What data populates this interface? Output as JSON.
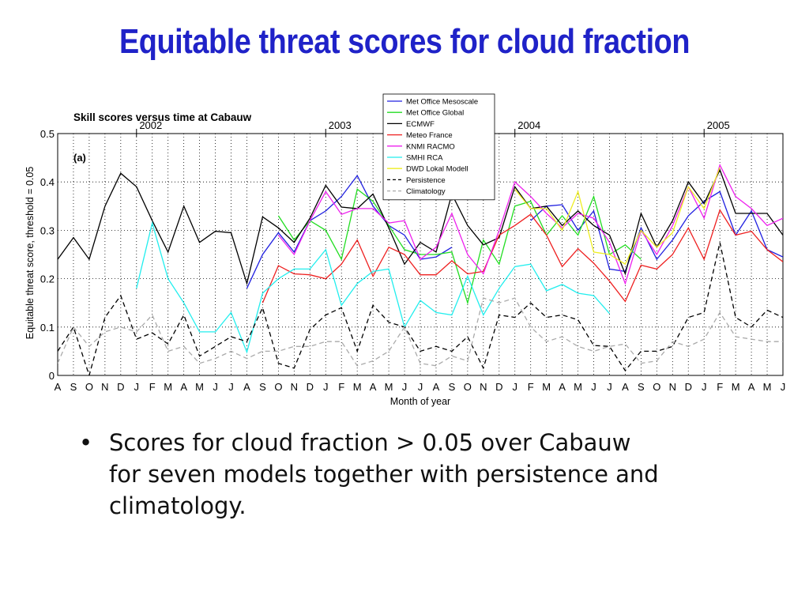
{
  "slide": {
    "title": "Equitable threat scores for cloud fraction",
    "bullet": "Scores for cloud fraction > 0.05 over Cabauw for seven models together with persistence and climatology."
  },
  "chart_data": {
    "type": "line",
    "title": "Skill scores versus time at Cabauw",
    "panel_label": "(a)",
    "xlabel": "Month of year",
    "ylabel": "Equitable threat score, threshold = 0.05",
    "ylim": [
      0,
      0.5
    ],
    "yticks": [
      "0",
      "0.1",
      "0.2",
      "0.3",
      "0.4",
      "0.5"
    ],
    "categories": [
      "A",
      "S",
      "O",
      "N",
      "D",
      "J",
      "F",
      "M",
      "A",
      "M",
      "J",
      "J",
      "A",
      "S",
      "O",
      "N",
      "D",
      "J",
      "F",
      "M",
      "A",
      "M",
      "J",
      "J",
      "A",
      "S",
      "O",
      "N",
      "D",
      "J",
      "F",
      "M",
      "A",
      "M",
      "J",
      "J",
      "A",
      "S",
      "O",
      "N",
      "D",
      "J",
      "F",
      "M",
      "A",
      "M",
      "J"
    ],
    "year_marks": [
      {
        "label": "2002",
        "index": 5
      },
      {
        "label": "2003",
        "index": 17
      },
      {
        "label": "2004",
        "index": 29
      },
      {
        "label": "2005",
        "index": 41
      }
    ],
    "grid": true,
    "legend_position": "top-right",
    "series": [
      {
        "name": "Met Office Mesoscale",
        "color": "#2020e0",
        "dash": false,
        "values": [
          null,
          null,
          null,
          null,
          null,
          null,
          null,
          null,
          null,
          null,
          null,
          null,
          0.18,
          0.25,
          0.295,
          0.255,
          0.32,
          0.34,
          0.37,
          0.413,
          0.35,
          0.31,
          0.29,
          0.24,
          0.245,
          0.265,
          null,
          null,
          null,
          null,
          0.32,
          0.35,
          0.353,
          0.3,
          0.34,
          0.22,
          0.215,
          0.305,
          0.24,
          0.28,
          0.33,
          0.36,
          0.38,
          0.29,
          0.34,
          0.26,
          0.245
        ]
      },
      {
        "name": "Met Office Global",
        "color": "#22dd22",
        "dash": false,
        "values": [
          null,
          null,
          null,
          null,
          null,
          null,
          null,
          null,
          null,
          null,
          null,
          null,
          null,
          null,
          0.33,
          0.28,
          0.32,
          0.3,
          0.24,
          0.385,
          0.36,
          0.31,
          0.26,
          0.25,
          0.25,
          0.255,
          0.15,
          0.28,
          0.23,
          0.35,
          0.36,
          0.29,
          0.33,
          0.29,
          0.37,
          0.25,
          0.27,
          0.24,
          null,
          null,
          null,
          null,
          null,
          null,
          null,
          null,
          null
        ]
      },
      {
        "name": "ECMWF",
        "color": "#000000",
        "dash": false,
        "values": [
          0.24,
          0.285,
          0.24,
          0.35,
          0.418,
          0.39,
          0.32,
          0.255,
          0.35,
          0.275,
          0.298,
          0.295,
          0.19,
          0.328,
          0.305,
          0.275,
          0.325,
          0.393,
          0.348,
          0.345,
          0.375,
          0.305,
          0.23,
          0.275,
          0.255,
          0.375,
          0.31,
          0.27,
          0.285,
          0.39,
          0.345,
          0.35,
          0.31,
          0.34,
          0.31,
          0.29,
          0.21,
          0.335,
          0.265,
          0.32,
          0.4,
          0.355,
          0.425,
          0.335,
          0.335,
          0.335,
          0.29
        ]
      },
      {
        "name": "Meteo France",
        "color": "#ee2020",
        "dash": false,
        "values": [
          null,
          null,
          null,
          null,
          null,
          null,
          null,
          null,
          null,
          null,
          null,
          null,
          null,
          0.15,
          0.227,
          0.21,
          0.208,
          0.2,
          0.23,
          0.28,
          0.205,
          0.265,
          0.25,
          0.208,
          0.208,
          0.237,
          0.21,
          0.215,
          0.29,
          0.31,
          0.333,
          0.29,
          0.225,
          0.262,
          0.232,
          0.195,
          0.153,
          0.228,
          0.22,
          0.25,
          0.305,
          0.24,
          0.342,
          0.29,
          0.298,
          0.26,
          0.235
        ]
      },
      {
        "name": "KNMI RACMO",
        "color": "#ee22ee",
        "dash": false,
        "values": [
          null,
          null,
          null,
          null,
          null,
          null,
          null,
          null,
          null,
          null,
          null,
          null,
          null,
          null,
          0.29,
          0.25,
          0.32,
          0.38,
          0.333,
          0.345,
          0.345,
          0.315,
          0.32,
          0.24,
          0.265,
          0.335,
          0.25,
          0.21,
          0.3,
          0.4,
          0.37,
          0.335,
          0.305,
          0.335,
          0.325,
          0.275,
          0.19,
          0.3,
          0.25,
          0.31,
          0.39,
          0.325,
          0.435,
          0.37,
          0.345,
          0.31,
          0.325
        ]
      },
      {
        "name": "SMHI RCA",
        "color": "#22eeee",
        "dash": false,
        "values": [
          null,
          null,
          null,
          null,
          null,
          0.18,
          0.315,
          0.2,
          0.15,
          0.09,
          0.09,
          0.13,
          0.048,
          0.17,
          0.2,
          0.22,
          0.22,
          0.26,
          0.145,
          0.19,
          0.215,
          0.22,
          0.1,
          0.155,
          0.13,
          0.125,
          0.205,
          0.125,
          0.18,
          0.225,
          0.23,
          0.175,
          0.188,
          0.17,
          0.165,
          0.128,
          null,
          null,
          null,
          null,
          null,
          null,
          null,
          null,
          null,
          null,
          null
        ]
      },
      {
        "name": "DWD Lokal Modell",
        "color": "#eeee22",
        "dash": false,
        "values": [
          null,
          null,
          null,
          null,
          null,
          null,
          null,
          null,
          null,
          null,
          null,
          null,
          null,
          null,
          null,
          null,
          null,
          null,
          null,
          null,
          null,
          null,
          null,
          null,
          null,
          null,
          null,
          null,
          null,
          0.385,
          0.345,
          0.345,
          0.3,
          0.38,
          0.255,
          0.25,
          0.23,
          0.3,
          0.265,
          0.295,
          0.39,
          0.345,
          0.43,
          null,
          null,
          null,
          null
        ]
      },
      {
        "name": "Persistence",
        "color": "#000000",
        "dash": true,
        "values": [
          0.05,
          0.1,
          0.0,
          0.12,
          0.165,
          0.075,
          0.088,
          0.065,
          0.125,
          0.04,
          0.06,
          0.08,
          0.07,
          0.14,
          0.025,
          0.015,
          0.095,
          0.125,
          0.14,
          0.05,
          0.145,
          0.11,
          0.1,
          0.05,
          0.06,
          0.05,
          0.08,
          0.015,
          0.125,
          0.12,
          0.15,
          0.12,
          0.125,
          0.115,
          0.062,
          0.06,
          0.01,
          0.05,
          0.05,
          0.06,
          0.12,
          0.13,
          0.275,
          0.12,
          0.1,
          0.135,
          0.12
        ]
      },
      {
        "name": "Climatology",
        "color": "#aaaaaa",
        "dash": true,
        "values": [
          0.025,
          0.1,
          0.06,
          0.09,
          0.1,
          0.09,
          0.125,
          0.05,
          0.06,
          0.025,
          0.035,
          0.05,
          0.035,
          0.05,
          0.05,
          0.06,
          0.06,
          0.07,
          0.07,
          0.02,
          0.03,
          0.05,
          0.1,
          0.025,
          0.02,
          0.04,
          0.03,
          0.16,
          0.15,
          0.16,
          0.1,
          0.07,
          0.08,
          0.06,
          0.05,
          0.06,
          0.065,
          0.025,
          0.03,
          0.07,
          0.06,
          0.075,
          0.13,
          0.08,
          0.075,
          0.07,
          0.07
        ]
      }
    ]
  }
}
